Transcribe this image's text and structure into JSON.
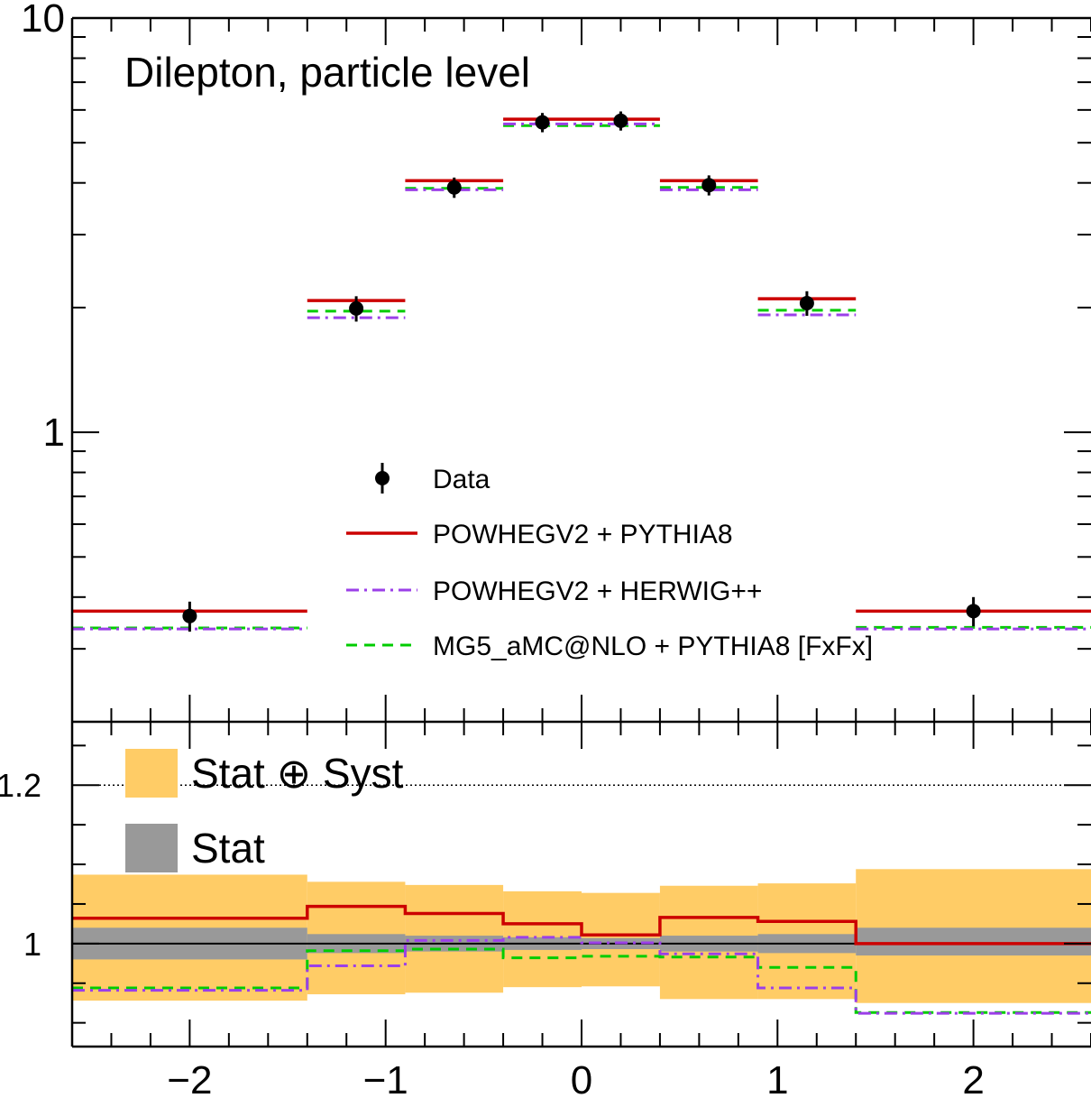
{
  "chart_data": [
    {
      "type": "line",
      "panel": "main",
      "annotation": "Dilepton, particle level",
      "title": "",
      "xlabel": "",
      "ylabel": "",
      "y_scale": "log",
      "xlim": [
        -2.6,
        2.6
      ],
      "ylim": [
        0.2,
        10
      ],
      "y_tick_labels": [
        "1",
        "10"
      ],
      "y_tick_values": [
        1,
        10
      ],
      "bin_edges": [
        -2.6,
        -1.4,
        -0.9,
        -0.4,
        0.0,
        0.4,
        0.9,
        1.4,
        2.6
      ],
      "data_points": {
        "name": "Data",
        "x": [
          -2.0,
          -1.15,
          -0.65,
          -0.2,
          0.2,
          0.65,
          1.15,
          2.0
        ],
        "y": [
          0.36,
          1.99,
          3.9,
          5.6,
          5.65,
          3.95,
          2.05,
          0.37
        ],
        "err": [
          0.03,
          0.14,
          0.22,
          0.3,
          0.3,
          0.22,
          0.14,
          0.03
        ]
      },
      "series": [
        {
          "name": "POWHEGV2 + PYTHIA8",
          "color": "#cc0000",
          "style": "solid",
          "values": [
            0.37,
            2.08,
            4.05,
            5.7,
            5.7,
            4.05,
            2.1,
            0.37
          ]
        },
        {
          "name": "POWHEGV2 + HERWIG++",
          "color": "#9b3fe8",
          "style": "dashdot",
          "values": [
            0.335,
            1.89,
            3.85,
            5.55,
            5.55,
            3.85,
            1.92,
            0.335
          ]
        },
        {
          "name": "MG5_aMC@NLO + PYTHIA8 [FxFx]",
          "color": "#00cc00",
          "style": "dashed",
          "values": [
            0.337,
            1.96,
            3.88,
            5.5,
            5.5,
            3.9,
            1.97,
            0.338
          ]
        }
      ],
      "legend": [
        "Data",
        "POWHEGV2 + PYTHIA8",
        "POWHEGV2 + HERWIG++",
        "MG5_aMC@NLO + PYTHIA8 [FxFx]"
      ],
      "legend_placement": "center"
    },
    {
      "type": "line",
      "panel": "ratio",
      "xlabel": "",
      "ylabel": "",
      "xlim": [
        -2.6,
        2.6
      ],
      "ylim": [
        0.87,
        1.28
      ],
      "x_tick_labels": [
        "−2",
        "−1",
        "0",
        "1",
        "2"
      ],
      "x_tick_values": [
        -2,
        -1,
        0,
        1,
        2
      ],
      "y_tick_labels": [
        "1",
        "1.2"
      ],
      "y_tick_values": [
        1.0,
        1.2
      ],
      "reference_line": 1.2,
      "bin_edges": [
        -2.6,
        -1.4,
        -0.9,
        -0.4,
        0.0,
        0.4,
        0.9,
        1.4,
        2.6
      ],
      "bands": [
        {
          "name": "Stat ⊕ Syst",
          "color": "#ffcc66",
          "low": [
            0.928,
            0.936,
            0.938,
            0.945,
            0.946,
            0.93,
            0.93,
            0.925
          ],
          "high": [
            1.087,
            1.078,
            1.074,
            1.066,
            1.064,
            1.073,
            1.076,
            1.094
          ]
        },
        {
          "name": "Stat",
          "color": "#999999",
          "low": [
            0.98,
            0.988,
            0.99,
            0.992,
            0.993,
            0.99,
            0.988,
            0.985
          ],
          "high": [
            1.02,
            1.012,
            1.01,
            1.008,
            1.007,
            1.01,
            1.012,
            1.02
          ]
        }
      ],
      "series": [
        {
          "name": "POWHEGV2 + PYTHIA8",
          "color": "#cc0000",
          "style": "solid",
          "values": [
            1.032,
            1.047,
            1.038,
            1.025,
            1.011,
            1.033,
            1.028,
            1.0
          ]
        },
        {
          "name": "POWHEGV2 + HERWIG++",
          "color": "#9b3fe8",
          "style": "dashdot",
          "values": [
            0.941,
            0.972,
            1.004,
            1.008,
            1.001,
            0.987,
            0.944,
            0.912
          ]
        },
        {
          "name": "MG5_aMC@NLO + PYTHIA8 [FxFx]",
          "color": "#00cc00",
          "style": "dashed",
          "values": [
            0.944,
            0.991,
            0.993,
            0.982,
            0.984,
            0.983,
            0.97,
            0.913
          ]
        }
      ],
      "legend": [
        "Stat ⊕ Syst",
        "Stat"
      ],
      "legend_placement": "top-left"
    }
  ]
}
